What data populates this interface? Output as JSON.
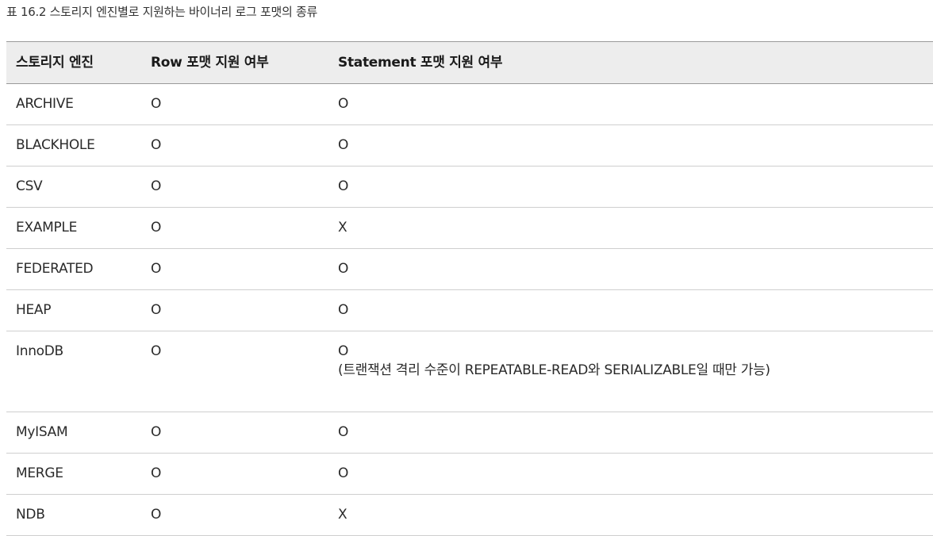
{
  "caption": "표 16.2 스토리지 엔진별로 지원하는 바이너리 로그 포맷의 종류",
  "table": {
    "headers": [
      "스토리지 엔진",
      "Row 포맷 지원 여부",
      "Statement 포맷 지원 여부"
    ],
    "rows": [
      {
        "engine": "ARCHIVE",
        "row": "O",
        "statement": "O",
        "note": ""
      },
      {
        "engine": "BLACKHOLE",
        "row": "O",
        "statement": "O",
        "note": ""
      },
      {
        "engine": "CSV",
        "row": "O",
        "statement": "O",
        "note": ""
      },
      {
        "engine": "EXAMPLE",
        "row": "O",
        "statement": "X",
        "note": ""
      },
      {
        "engine": "FEDERATED",
        "row": "O",
        "statement": "O",
        "note": ""
      },
      {
        "engine": "HEAP",
        "row": "O",
        "statement": "O",
        "note": ""
      },
      {
        "engine": "InnoDB",
        "row": "O",
        "statement": "O",
        "note": "(트랜잭션 격리 수준이 REPEATABLE-READ와 SERIALIZABLE일 때만 가능)"
      },
      {
        "engine": "MyISAM",
        "row": "O",
        "statement": "O",
        "note": ""
      },
      {
        "engine": "MERGE",
        "row": "O",
        "statement": "O",
        "note": ""
      },
      {
        "engine": "NDB",
        "row": "O",
        "statement": "X",
        "note": ""
      }
    ]
  }
}
